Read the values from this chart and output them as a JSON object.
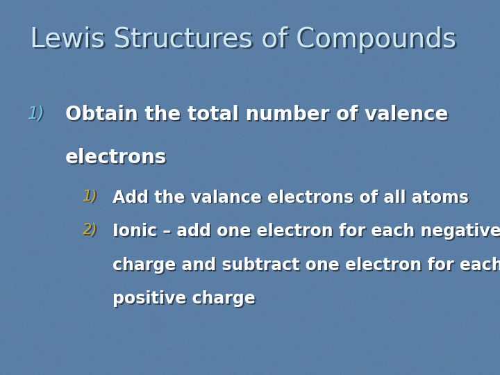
{
  "title": "Lewis Structures of Compounds",
  "title_color": "#d0e8f0",
  "title_fontsize": 28,
  "background_color": "#5b7fa6",
  "bullet1_number": "1)",
  "bullet1_number_color": "#70c8e0",
  "bullet1_text_line1": "Obtain the total number of valence",
  "bullet1_text_line2": "electrons",
  "bullet1_text_color": "#ffffff",
  "bullet1_fontsize": 20,
  "bullet1_number_fontsize": 17,
  "sub_bullet_number_color": "#d4a820",
  "sub_bullet_text_color": "#ffffff",
  "sub_bullet_fontsize": 17,
  "sub_bullet_number_fontsize": 15,
  "sub1_number": "1)",
  "sub1_text": "Add the valance electrons of all atoms",
  "sub2_number": "2)",
  "sub2_text_line1": "Ionic – add one electron for each negative",
  "sub2_text_line2": "charge and subtract one electron for each",
  "sub2_text_line3": "positive charge"
}
